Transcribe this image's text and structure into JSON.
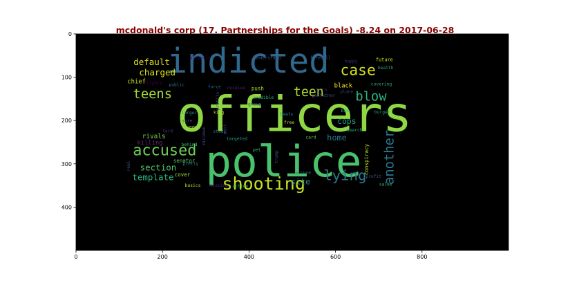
{
  "chart_data": {
    "type": "wordcloud",
    "title": "mcdonald's corp (17. Partnerships for the Goals) -8.24 on 2017-06-28",
    "background": "#000000",
    "title_color": "#8b0000",
    "xlim": [
      0,
      1000
    ],
    "ylim": [
      500,
      0
    ],
    "x_ticks": [
      "0",
      "200",
      "400",
      "600",
      "800"
    ],
    "y_ticks": [
      "0",
      "100",
      "200",
      "300",
      "400"
    ],
    "words": [
      {
        "text": "officers",
        "x": 505,
        "y": 185,
        "size": 113,
        "color": "#8fd744",
        "rot": 0
      },
      {
        "text": "police",
        "x": 480,
        "y": 295,
        "size": 100,
        "color": "#4ac16d",
        "rot": 0
      },
      {
        "text": "indicted",
        "x": 398,
        "y": 63,
        "size": 78,
        "color": "#31688e",
        "rot": 0
      },
      {
        "text": "shooting",
        "x": 434,
        "y": 346,
        "size": 40,
        "color": "#c8e020",
        "rot": 0
      },
      {
        "text": "accused",
        "x": 205,
        "y": 270,
        "size": 35,
        "color": "#6ece58",
        "rot": 0
      },
      {
        "text": "case",
        "x": 652,
        "y": 85,
        "size": 34,
        "color": "#d5e21a",
        "rot": 0
      },
      {
        "text": "lying",
        "x": 622,
        "y": 327,
        "size": 33,
        "color": "#2a788e",
        "rot": 0
      },
      {
        "text": "teens",
        "x": 177,
        "y": 140,
        "size": 30,
        "color": "#a8db34",
        "rot": 0
      },
      {
        "text": "blow",
        "x": 682,
        "y": 145,
        "size": 30,
        "color": "#2db27d",
        "rot": 0
      },
      {
        "text": "teen",
        "x": 538,
        "y": 135,
        "size": 29,
        "color": "#b5de2b",
        "rot": 0
      },
      {
        "text": "another",
        "x": 725,
        "y": 285,
        "size": 30,
        "color": "#2a788e",
        "rot": -90
      },
      {
        "text": "default",
        "x": 175,
        "y": 65,
        "size": 20,
        "color": "#dde318",
        "rot": 0
      },
      {
        "text": "charged",
        "x": 188,
        "y": 89,
        "size": 20,
        "color": "#dde318",
        "rot": 0
      },
      {
        "text": "template",
        "x": 178,
        "y": 331,
        "size": 20,
        "color": "#2db27d",
        "rot": 0
      },
      {
        "text": "section",
        "x": 190,
        "y": 308,
        "size": 20,
        "color": "#52c569",
        "rot": 0
      },
      {
        "text": "home",
        "x": 603,
        "y": 240,
        "size": 19,
        "color": "#2a788e",
        "rot": 0
      },
      {
        "text": "site",
        "x": 519,
        "y": 341,
        "size": 19,
        "color": "#21918c",
        "rot": 0
      },
      {
        "text": "cops",
        "x": 626,
        "y": 202,
        "size": 18,
        "color": "#20a486",
        "rot": 0
      },
      {
        "text": "rivals",
        "x": 180,
        "y": 237,
        "size": 15,
        "color": "#7ad151",
        "rot": 0
      },
      {
        "text": "killing",
        "x": 171,
        "y": 252,
        "size": 14,
        "color": "#6a1f75",
        "rot": 0
      },
      {
        "text": "chief",
        "x": 140,
        "y": 111,
        "size": 14,
        "color": "#c8e020",
        "rot": 0
      },
      {
        "text": "black",
        "x": 618,
        "y": 121,
        "size": 14,
        "color": "#fde725",
        "rot": 0
      },
      {
        "text": "conspiracy",
        "x": 672,
        "y": 290,
        "size": 12,
        "color": "#bddf26",
        "rot": -90
      },
      {
        "text": "cover",
        "x": 246,
        "y": 325,
        "size": 12,
        "color": "#9fda3a",
        "rot": 0
      },
      {
        "text": "senator",
        "x": 250,
        "y": 293,
        "size": 12,
        "color": "#5ec962",
        "rot": 0
      },
      {
        "text": "push",
        "x": 420,
        "y": 126,
        "size": 12,
        "color": "#9fda3a",
        "rot": 0
      },
      {
        "text": "future",
        "x": 713,
        "y": 60,
        "size": 11,
        "color": "#d8e219",
        "rot": 0
      },
      {
        "text": "health",
        "x": 716,
        "y": 79,
        "size": 10,
        "color": "#25ab82",
        "rot": 0
      },
      {
        "text": "covering",
        "x": 706,
        "y": 117,
        "size": 10,
        "color": "#25ab82",
        "rot": 0
      },
      {
        "text": "wage",
        "x": 268,
        "y": 216,
        "size": 11,
        "color": "#a5db36",
        "rot": 0
      },
      {
        "text": "playsfix",
        "x": 287,
        "y": 56,
        "size": 10,
        "color": "#440154",
        "rot": 0
      },
      {
        "text": "understand",
        "x": 443,
        "y": 56,
        "size": 10,
        "color": "#3b528b",
        "rot": 0
      },
      {
        "text": "fireball",
        "x": 565,
        "y": 56,
        "size": 10,
        "color": "#3a548c",
        "rot": 0
      },
      {
        "text": "happy",
        "x": 636,
        "y": 64,
        "size": 10,
        "color": "#482677",
        "rot": 0
      },
      {
        "text": "flights",
        "x": 178,
        "y": 114,
        "size": 10,
        "color": "#440154",
        "rot": 0
      },
      {
        "text": "public",
        "x": 233,
        "y": 118,
        "size": 10,
        "color": "#2a788e",
        "rot": 0
      },
      {
        "text": "force",
        "x": 320,
        "y": 123,
        "size": 10,
        "color": "#31688e",
        "rot": 0
      },
      {
        "text": "receive",
        "x": 370,
        "y": 125,
        "size": 10,
        "color": "#482677",
        "rot": 0
      },
      {
        "text": "born",
        "x": 568,
        "y": 129,
        "size": 10,
        "color": "#482677",
        "rot": 0
      },
      {
        "text": "plane",
        "x": 626,
        "y": 134,
        "size": 10,
        "color": "#443a83",
        "rot": 0
      },
      {
        "text": "credible",
        "x": 433,
        "y": 148,
        "size": 10,
        "color": "#35b779",
        "rot": 0
      },
      {
        "text": "godfather",
        "x": 572,
        "y": 143,
        "size": 10,
        "color": "#414487",
        "rot": 0
      },
      {
        "text": "profile",
        "x": 328,
        "y": 155,
        "size": 10,
        "color": "#443a83",
        "rot": -90
      },
      {
        "text": "group",
        "x": 413,
        "y": 163,
        "size": 10,
        "color": "#31688e",
        "rot": 0
      },
      {
        "text": "bad",
        "x": 622,
        "y": 178,
        "size": 10,
        "color": "#35b779",
        "rot": 0
      },
      {
        "text": "burger",
        "x": 708,
        "y": 181,
        "size": 10,
        "color": "#1f9e89",
        "rot": 0
      },
      {
        "text": "king",
        "x": 330,
        "y": 182,
        "size": 10,
        "color": "#b8de29",
        "rot": 0
      },
      {
        "text": "larger",
        "x": 262,
        "y": 183,
        "size": 10,
        "color": "#21918c",
        "rot": 0
      },
      {
        "text": "beats",
        "x": 487,
        "y": 186,
        "size": 10,
        "color": "#21918c",
        "rot": 0
      },
      {
        "text": "post",
        "x": 345,
        "y": 220,
        "size": 10,
        "color": "#472d7b",
        "rot": -90
      },
      {
        "text": "sure",
        "x": 257,
        "y": 201,
        "size": 10,
        "color": "#3b528b",
        "rot": 0
      },
      {
        "text": "free",
        "x": 493,
        "y": 205,
        "size": 10,
        "color": "#c2df23",
        "rot": 0
      },
      {
        "text": "minimum",
        "x": 296,
        "y": 236,
        "size": 10,
        "color": "#414487",
        "rot": -90
      },
      {
        "text": "lord",
        "x": 212,
        "y": 225,
        "size": 10,
        "color": "#472d7b",
        "rot": 0
      },
      {
        "text": "study",
        "x": 332,
        "y": 226,
        "size": 10,
        "color": "#2a788e",
        "rot": 0
      },
      {
        "text": "search",
        "x": 644,
        "y": 223,
        "size": 10,
        "color": "#2db27d",
        "rot": 0
      },
      {
        "text": "targeted",
        "x": 372,
        "y": 243,
        "size": 10,
        "color": "#1f9e89",
        "rot": 0
      },
      {
        "text": "card",
        "x": 543,
        "y": 240,
        "size": 10,
        "color": "#5ec962",
        "rot": 0
      },
      {
        "text": "behind",
        "x": 262,
        "y": 256,
        "size": 10,
        "color": "#3bbb75",
        "rot": 0
      },
      {
        "text": "pet",
        "x": 418,
        "y": 268,
        "size": 10,
        "color": "#3bbb75",
        "rot": 0
      },
      {
        "text": "trump",
        "x": 464,
        "y": 284,
        "size": 10,
        "color": "#3b528b",
        "rot": -90
      },
      {
        "text": "real",
        "x": 122,
        "y": 305,
        "size": 10,
        "color": "#3b528b",
        "rot": -90
      },
      {
        "text": "pretty",
        "x": 265,
        "y": 300,
        "size": 10,
        "color": "#2c728e",
        "rot": 0
      },
      {
        "text": "accuse",
        "x": 525,
        "y": 321,
        "size": 10,
        "color": "#2a788e",
        "rot": 0
      },
      {
        "text": "profit",
        "x": 688,
        "y": 330,
        "size": 10,
        "color": "#3b528b",
        "rot": 0
      },
      {
        "text": "sales",
        "x": 716,
        "y": 348,
        "size": 10,
        "color": "#35b779",
        "rot": 0
      },
      {
        "text": "basics",
        "x": 270,
        "y": 351,
        "size": 10,
        "color": "#b5de2b",
        "rot": 0
      },
      {
        "text": "missing",
        "x": 330,
        "y": 351,
        "size": 10,
        "color": "#482677",
        "rot": 0
      },
      {
        "text": "action",
        "x": 380,
        "y": 352,
        "size": 10,
        "color": "#2db27d",
        "rot": 0
      }
    ]
  }
}
